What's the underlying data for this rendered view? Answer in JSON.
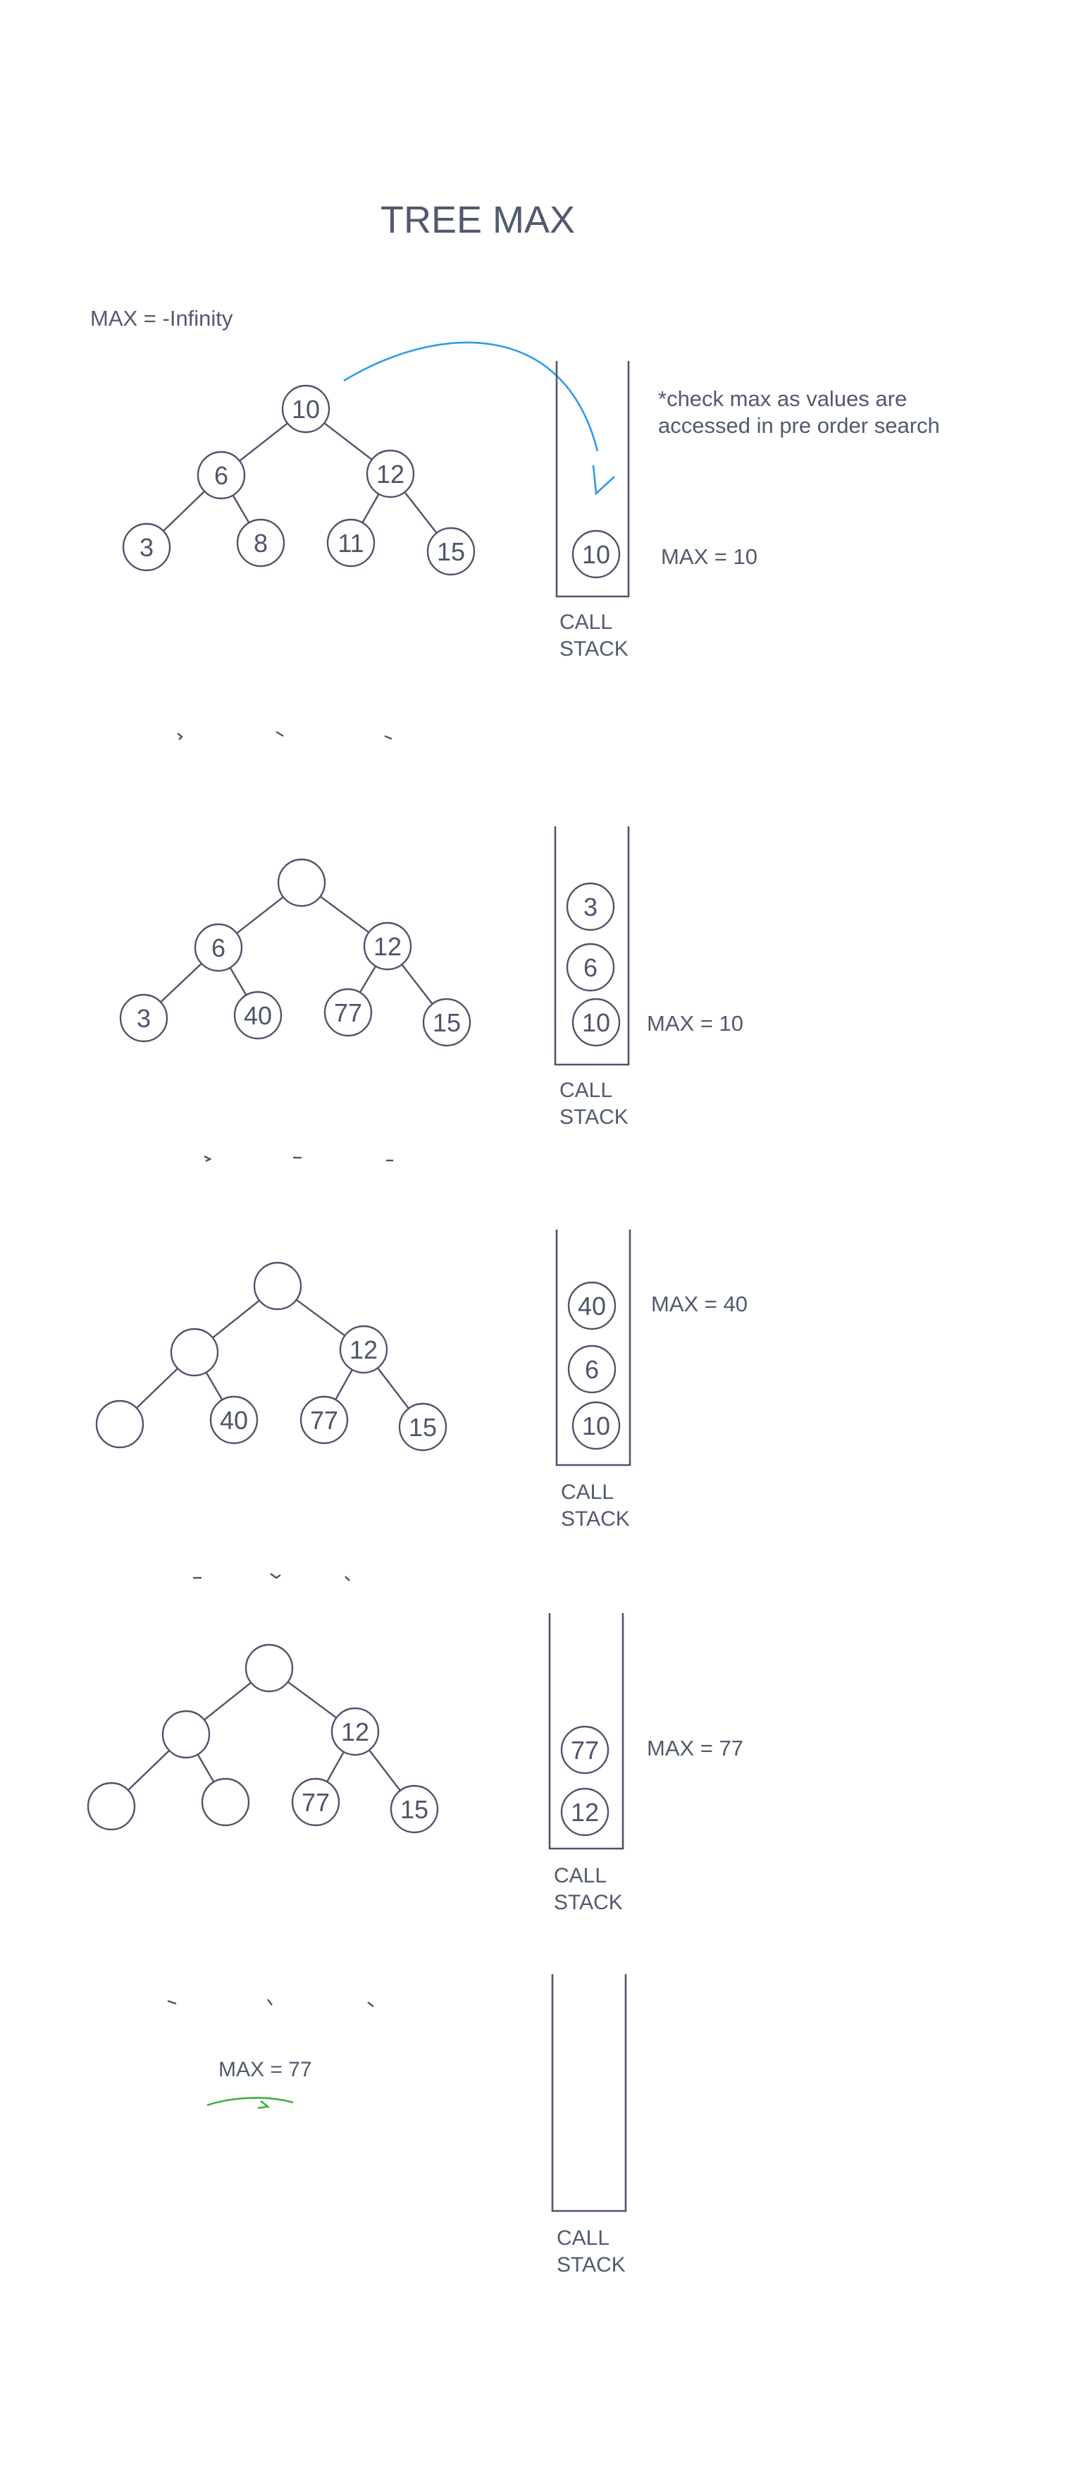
{
  "title": "TREE MAX",
  "initial_max": "MAX = -Infinity",
  "note_line1": "*check max as values are",
  "note_line2": "accessed in pre order search",
  "stack_label_1": "CALL",
  "stack_label_2": "STACK",
  "final_max": "MAX = 77",
  "colors": {
    "ink": "#4d556a",
    "arrow": "#2f9be8",
    "underline": "#3fae3a"
  },
  "frames": [
    {
      "tree": [
        "10",
        "6",
        "12",
        "3",
        "8",
        "11",
        "15"
      ],
      "stack": [
        "10"
      ],
      "max": "MAX = 10"
    },
    {
      "tree": [
        "",
        "6",
        "12",
        "3",
        "40",
        "77",
        "15"
      ],
      "stack": [
        "3",
        "6",
        "10"
      ],
      "max": "MAX = 10"
    },
    {
      "tree": [
        "",
        "",
        "12",
        "",
        "40",
        "77",
        "15"
      ],
      "stack": [
        "40",
        "6",
        "10"
      ],
      "max": "MAX = 40"
    },
    {
      "tree": [
        "",
        "",
        "12",
        "",
        "",
        "77",
        "15"
      ],
      "stack": [
        "77",
        "12"
      ],
      "max": "MAX = 77"
    },
    {
      "tree": [],
      "stack": [],
      "max": ""
    }
  ]
}
